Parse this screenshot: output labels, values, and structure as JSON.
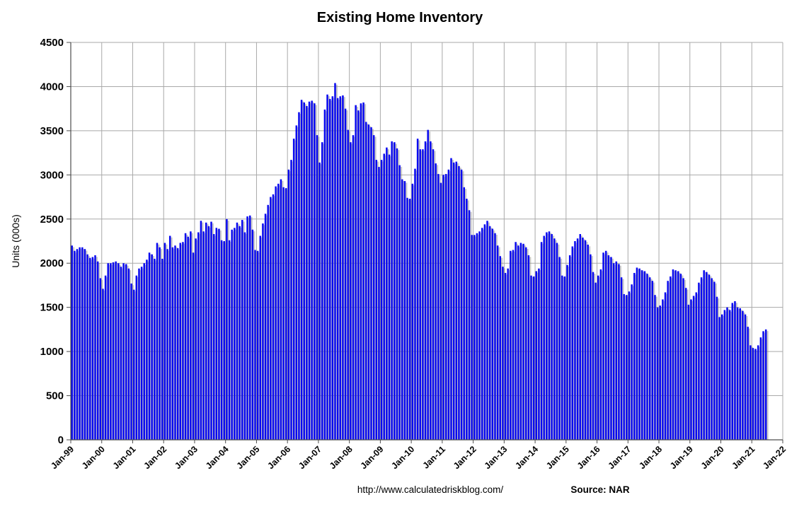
{
  "page": {
    "background": "#FFFFFF"
  },
  "header": {
    "title": "Existing Home Inventory"
  },
  "y_axis": {
    "title": "Units (000s)"
  },
  "footer": {
    "url": "http://www.calculatedriskblog.com/",
    "source": "Source: NAR"
  },
  "chart_data": {
    "type": "bar",
    "title": "Existing Home Inventory",
    "xlabel": "",
    "ylabel": "Units (000s)",
    "ylim": [
      0,
      4500
    ],
    "y_ticks": [
      0,
      500,
      1000,
      1500,
      2000,
      2500,
      3000,
      3500,
      4000,
      4500
    ],
    "grid": "both",
    "legend": "none",
    "frequency": "monthly",
    "x_start": "Jan-1999",
    "x_end": "Jun-2021",
    "x_axis_extends_to": "Jan-2022",
    "bar_color": "#0808F0",
    "bar_shadow_color": "#8A8A8A",
    "gridline_color": "#A9A9A9",
    "axis_color": "#4D4D4D",
    "x_tick_labels": [
      "Jan-99",
      "Jan-00",
      "Jan-01",
      "Jan-02",
      "Jan-03",
      "Jan-04",
      "Jan-05",
      "Jan-06",
      "Jan-07",
      "Jan-08",
      "Jan-09",
      "Jan-10",
      "Jan-11",
      "Jan-12",
      "Jan-13",
      "Jan-14",
      "Jan-15",
      "Jan-16",
      "Jan-17",
      "Jan-18",
      "Jan-19",
      "Jan-20",
      "Jan-21",
      "Jan-22"
    ],
    "series": [
      {
        "name": "Existing Home Inventory (000s, monthly, Jan-99 to Jun-21)",
        "values": [
          2200,
          2140,
          2160,
          2180,
          2180,
          2160,
          2100,
          2060,
          2070,
          2090,
          2020,
          1830,
          1710,
          1860,
          2000,
          2000,
          2010,
          2020,
          2000,
          1960,
          2000,
          1990,
          1940,
          1770,
          1700,
          1860,
          1940,
          1960,
          2000,
          2040,
          2120,
          2100,
          2050,
          2230,
          2180,
          2050,
          2230,
          2160,
          2310,
          2180,
          2200,
          2170,
          2230,
          2240,
          2340,
          2300,
          2360,
          2120,
          2280,
          2350,
          2480,
          2360,
          2460,
          2420,
          2470,
          2330,
          2400,
          2390,
          2260,
          2250,
          2500,
          2260,
          2380,
          2400,
          2460,
          2420,
          2490,
          2350,
          2530,
          2540,
          2380,
          2150,
          2140,
          2310,
          2450,
          2560,
          2660,
          2750,
          2780,
          2870,
          2900,
          2950,
          2860,
          2850,
          3060,
          3170,
          3410,
          3560,
          3710,
          3850,
          3820,
          3780,
          3830,
          3840,
          3810,
          3450,
          3140,
          3370,
          3740,
          3910,
          3860,
          3890,
          4040,
          3870,
          3890,
          3900,
          3750,
          3510,
          3370,
          3450,
          3790,
          3730,
          3810,
          3820,
          3600,
          3570,
          3540,
          3450,
          3170,
          3090,
          3170,
          3240,
          3310,
          3230,
          3380,
          3370,
          3300,
          3110,
          2950,
          2930,
          2740,
          2730,
          2900,
          3070,
          3410,
          3290,
          3290,
          3380,
          3510,
          3380,
          3290,
          3130,
          3010,
          2910,
          3000,
          3010,
          3060,
          3190,
          3140,
          3150,
          3100,
          3060,
          2860,
          2730,
          2600,
          2320,
          2320,
          2340,
          2360,
          2400,
          2440,
          2480,
          2420,
          2390,
          2340,
          2200,
          2080,
          1960,
          1890,
          1940,
          2140,
          2150,
          2240,
          2200,
          2230,
          2220,
          2180,
          2090,
          1860,
          1850,
          1910,
          1940,
          2240,
          2310,
          2350,
          2360,
          2330,
          2280,
          2230,
          2070,
          1860,
          1850,
          1980,
          2090,
          2190,
          2250,
          2280,
          2330,
          2290,
          2260,
          2210,
          2100,
          1900,
          1780,
          1860,
          1930,
          2120,
          2140,
          2090,
          2070,
          2000,
          2020,
          1990,
          1840,
          1650,
          1640,
          1680,
          1760,
          1890,
          1950,
          1940,
          1920,
          1910,
          1880,
          1840,
          1800,
          1640,
          1500,
          1520,
          1590,
          1670,
          1800,
          1850,
          1930,
          1920,
          1910,
          1880,
          1830,
          1720,
          1530,
          1590,
          1630,
          1670,
          1780,
          1840,
          1920,
          1900,
          1870,
          1830,
          1790,
          1620,
          1390,
          1420,
          1470,
          1500,
          1470,
          1550,
          1570,
          1500,
          1490,
          1460,
          1420,
          1280,
          1070,
          1040,
          1030,
          1070,
          1160,
          1230,
          1250
        ]
      }
    ]
  }
}
